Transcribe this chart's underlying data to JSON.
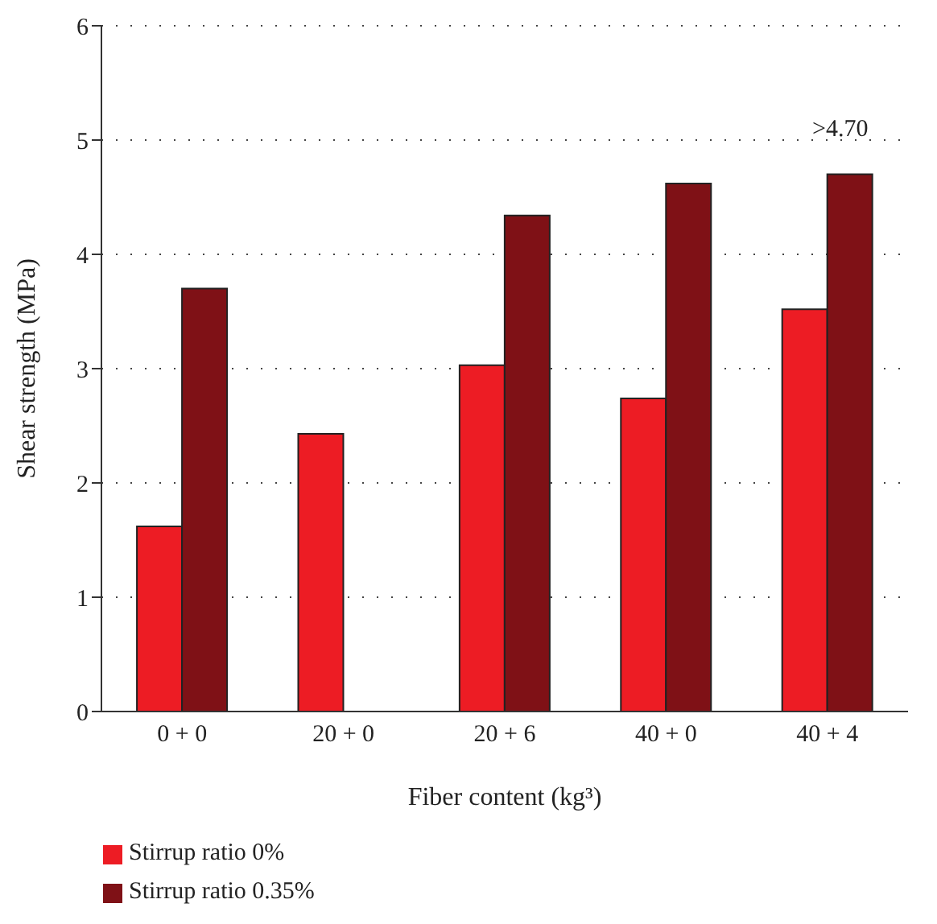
{
  "chart_data": {
    "type": "bar",
    "xlabel": "Fiber content (kg³)",
    "ylabel": "Shear strength (MPa)",
    "categories": [
      "0 + 0",
      "20 + 0",
      "20 + 6",
      "40 + 0",
      "40 + 4"
    ],
    "series": [
      {
        "name": "Stirrup ratio 0%",
        "color": "#ed1c24",
        "values": [
          1.62,
          2.43,
          3.03,
          2.74,
          3.52
        ]
      },
      {
        "name": "Stirrup ratio 0.35%",
        "color": "#7f1116",
        "values": [
          3.7,
          null,
          4.34,
          4.62,
          4.7
        ]
      }
    ],
    "ylim": [
      0,
      6
    ],
    "yticks": [
      0,
      1,
      2,
      3,
      4,
      5,
      6
    ],
    "grid": "y",
    "legend": "bottom left",
    "annotations": [
      {
        "text": ">4.70",
        "x": "40 + 4",
        "y": 4.7
      }
    ]
  }
}
